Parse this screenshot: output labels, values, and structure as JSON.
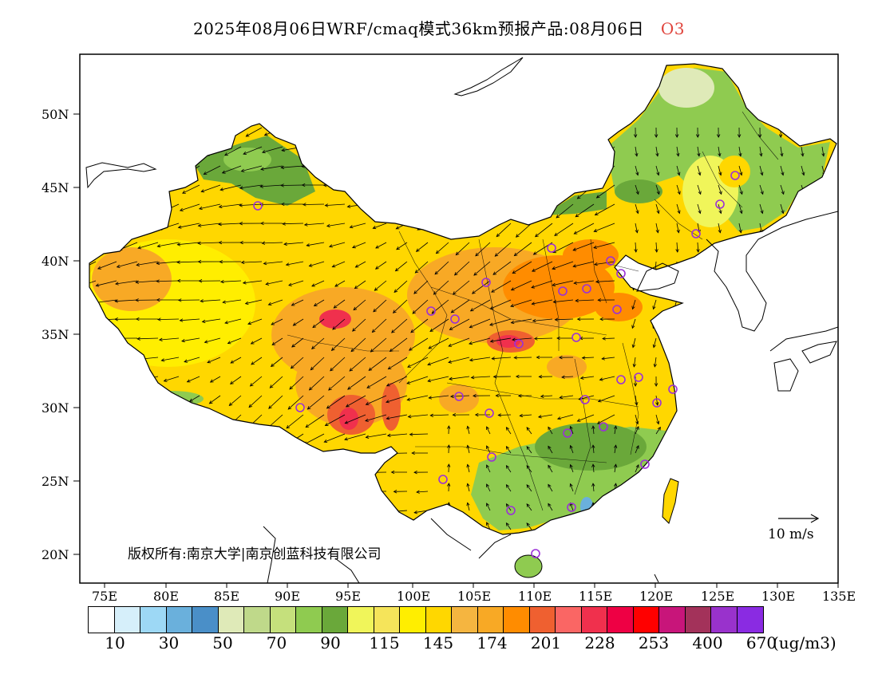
{
  "title": {
    "text": "2025年08月06日WRF/cmaq模式36km预报产品:08月06日",
    "species": "O3",
    "species_color": "#e0443c"
  },
  "axes": {
    "y_labels": [
      "50N",
      "45N",
      "40N",
      "35N",
      "30N",
      "25N",
      "20N"
    ],
    "x_labels": [
      "75E",
      "80E",
      "85E",
      "90E",
      "95E",
      "100E",
      "105E",
      "110E",
      "115E",
      "120E",
      "125E",
      "130E",
      "135E"
    ]
  },
  "map": {
    "copyright": "版权所有:南京大学|南京创蓝科技有限公司",
    "wind_reference": "10 m/s",
    "background_color": "#ffffff",
    "station_marker_color": "#9b30d8"
  },
  "colorbar": {
    "colors": [
      "#ffffff",
      "#d6effa",
      "#9dd8f5",
      "#6ab0dc",
      "#4a8fc8",
      "#dfeab8",
      "#bfd98a",
      "#c5e07c",
      "#8fcb50",
      "#6aa83a",
      "#f0f55a",
      "#f5e45a",
      "#ffee00",
      "#ffd700",
      "#f5b540",
      "#f8a925",
      "#ff8c00",
      "#ef6030",
      "#fa6664",
      "#f0304d",
      "#ee0044",
      "#ff0000",
      "#c8157a",
      "#a3325a",
      "#9932cc",
      "#8a2be2"
    ],
    "labels": [
      "10",
      "30",
      "50",
      "70",
      "90",
      "115",
      "145",
      "174",
      "201",
      "228",
      "253",
      "400",
      "670"
    ],
    "unit": "(ug/m3)"
  }
}
